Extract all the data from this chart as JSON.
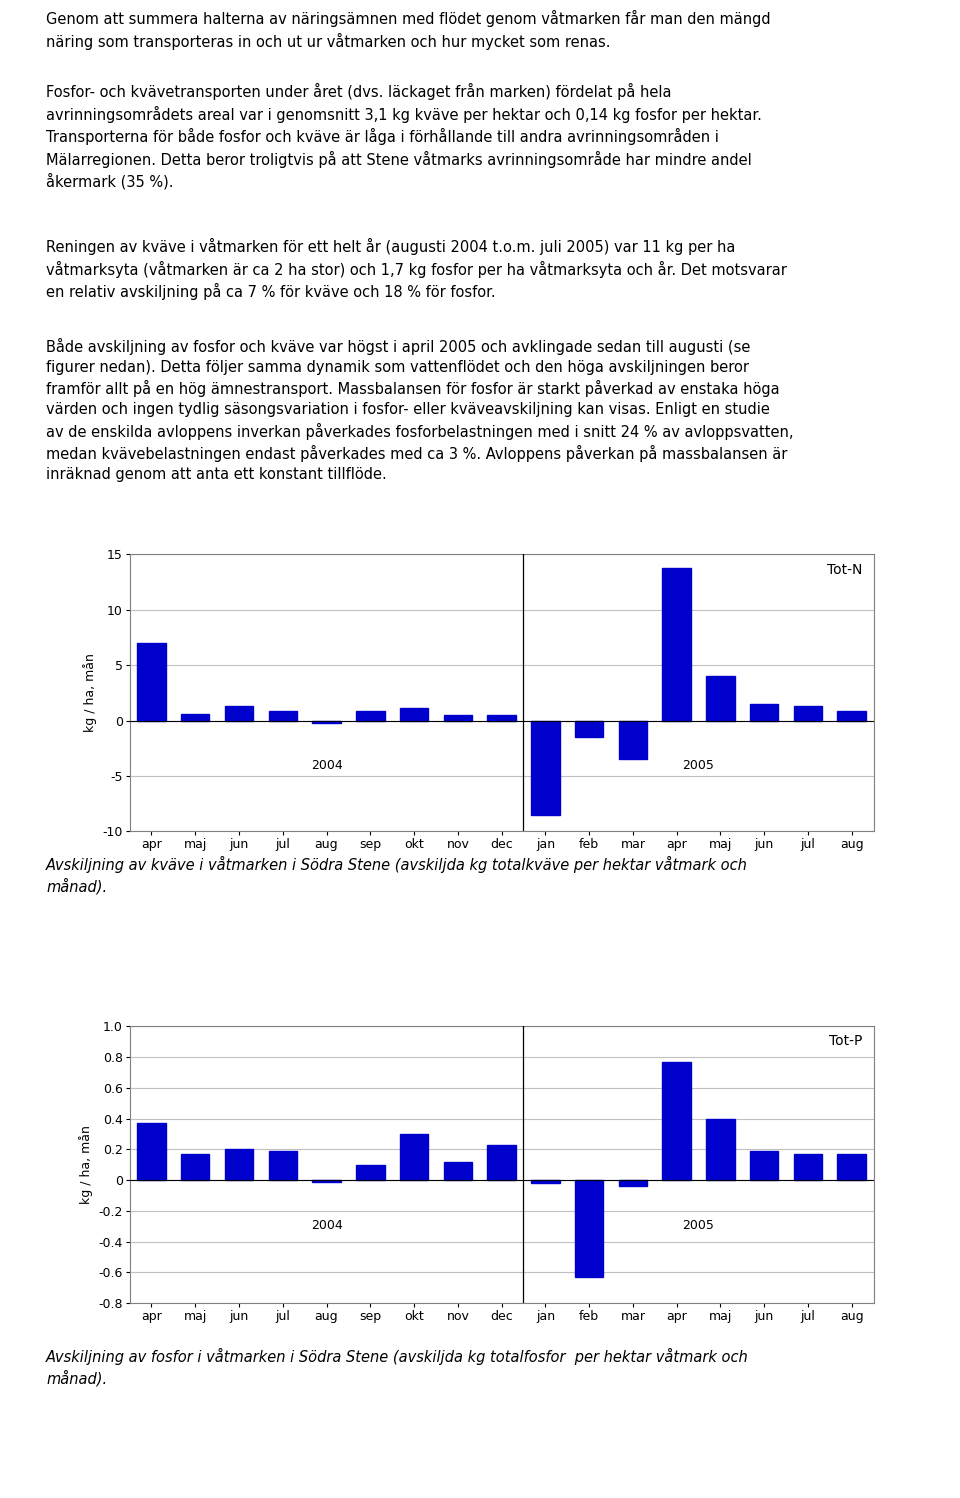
{
  "text_paragraphs": [
    "Genom att summera halterna av näringsämnen med flödet genom våtmarken får man den mängd\nnäring som transporteras in och ut ur våtmarken och hur mycket som renas.",
    "Fosfor- och kvävetransporten under året (dvs. läckaget från marken) fördelat på hela\navrinningsområdets areal var i genomsnitt 3,1 kg kväve per hektar och 0,14 kg fosfor per hektar.\nTransporterna för både fosfor och kväve är låga i förhållande till andra avrinningsområden i\nMälarregionen. Detta beror troligtvis på att Stene våtmarks avrinningsområde har mindre andel\nåkermark (35 %).",
    "Reningen av kväve i våtmarken för ett helt år (augusti 2004 t.o.m. juli 2005) var 11 kg per ha\nvåtmarksyta (våtmarken är ca 2 ha stor) och 1,7 kg fosfor per ha våtmarksyta och år. Det motsvarar\nen relativ avskiljning på ca 7 % för kväve och 18 % för fosfor.",
    "Både avskiljning av fosfor och kväve var högst i april 2005 och avklingade sedan till augusti (se\nfigurer nedan). Detta följer samma dynamik som vattenflödet och den höga avskiljningen beror\nframför allt på en hög ämnestransport. Massbalansen för fosfor är starkt påverkad av enstaka höga\nvärden och ingen tydlig säsongsvariation i fosfor- eller kväveavskiljning kan visas. Enligt en studie\nav de enskilda avloppens inverkan påverkades fosforbelastningen med i snitt 24 % av avloppsvatten,\nmedan kvävebelastningen endast påverkades med ca 3 %. Avloppens påverkan på massbalansen är\ninräknad genom att anta ett konstant tillflöde."
  ],
  "caption1": "Avskiljning av kväve i våtmarken i Södra Stene (avskiljda kg totalkväve per hektar våtmark och\nmånad).",
  "caption2": "Avskiljning av fosfor i våtmarken i Södra Stene (avskiljda kg totalfosfor  per hektar våtmark och\nmånad).",
  "months": [
    "apr",
    "maj",
    "jun",
    "jul",
    "aug",
    "sep",
    "okt",
    "nov",
    "dec",
    "jan",
    "feb",
    "mar",
    "apr",
    "maj",
    "jun",
    "jul",
    "aug"
  ],
  "totn_values": [
    7.0,
    0.6,
    1.3,
    0.9,
    -0.2,
    0.9,
    1.1,
    0.5,
    0.5,
    -8.5,
    -1.5,
    -3.5,
    13.8,
    4.0,
    1.5,
    1.3,
    0.9
  ],
  "totn_ylim": [
    -10,
    15
  ],
  "totn_yticks": [
    -10,
    -5,
    0,
    5,
    10,
    15
  ],
  "totp_values": [
    0.37,
    0.17,
    0.2,
    0.19,
    -0.01,
    0.1,
    0.3,
    0.12,
    0.23,
    -0.02,
    -0.63,
    -0.04,
    0.77,
    0.4,
    0.19,
    0.17,
    0.17
  ],
  "totp_ylim": [
    -0.8,
    1.0
  ],
  "totp_yticks": [
    -0.8,
    -0.6,
    -0.4,
    -0.2,
    0,
    0.2,
    0.4,
    0.6,
    0.8,
    1.0
  ],
  "bar_color": "#0000CD",
  "ylabel": "kg / ha, mån",
  "background_color": "#ffffff",
  "font_size_text": 10.5,
  "font_size_axis": 9,
  "grid_color": "#c0c0c0",
  "spine_color": "#808080"
}
